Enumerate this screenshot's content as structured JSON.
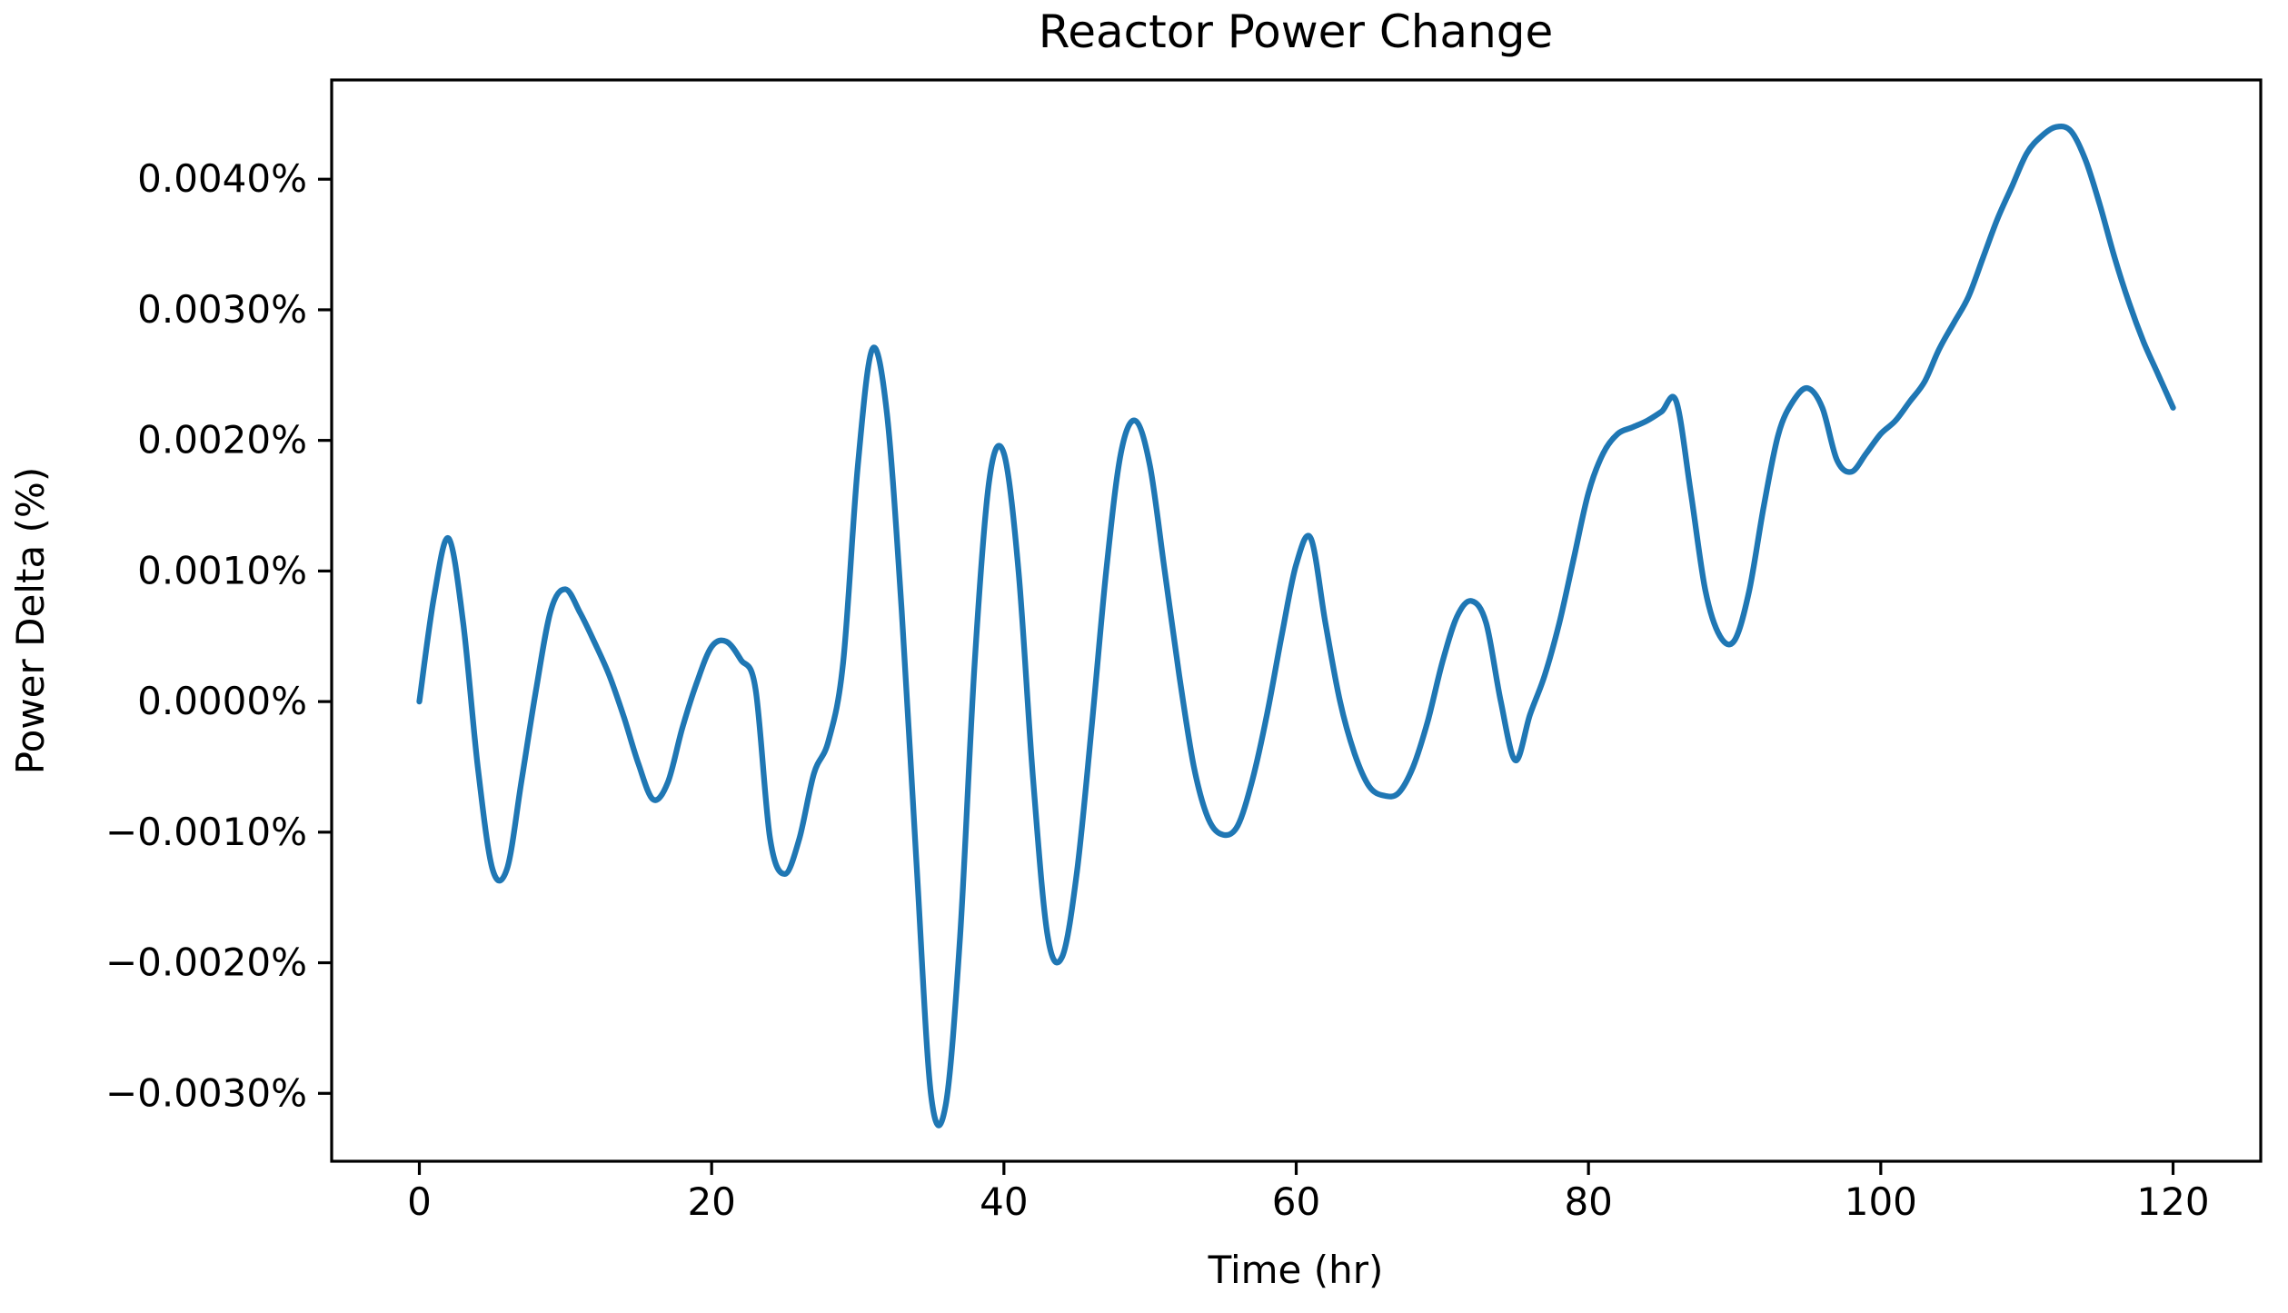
{
  "chart_data": {
    "type": "line",
    "title": "Reactor Power Change",
    "xlabel": "Time (hr)",
    "ylabel": "Power Delta (%)",
    "grid": false,
    "legend_position": "none",
    "line_color": "#1f77b4",
    "axis_color": "#000000",
    "background_color": "#ffffff",
    "xlim": [
      -6,
      126
    ],
    "ylim_percent": [
      -0.00352,
      0.00476
    ],
    "x_ticks": [
      0,
      20,
      40,
      60,
      80,
      100,
      120
    ],
    "x_tick_labels": [
      "0",
      "20",
      "40",
      "60",
      "80",
      "100",
      "120"
    ],
    "y_ticks_percent": [
      0.004,
      0.003,
      0.002,
      0.001,
      0.0,
      -0.001,
      -0.002,
      -0.003
    ],
    "y_tick_labels": [
      "0.0040%",
      "0.0030%",
      "0.0020%",
      "0.0010%",
      "0.0000%",
      "−0.0010%",
      "−0.0020%",
      "−0.0030%"
    ],
    "series": [
      {
        "name": "Power Delta",
        "x_hours": [
          0,
          1,
          2,
          3,
          4,
          5,
          6,
          7,
          8,
          9,
          10,
          11,
          12,
          13,
          14,
          15,
          16,
          17,
          18,
          19,
          20,
          21,
          22,
          23,
          24,
          25,
          26,
          27,
          28,
          29,
          30,
          31,
          32,
          33,
          34,
          35,
          36,
          37,
          38,
          39,
          40,
          41,
          42,
          43,
          44,
          45,
          46,
          47,
          48,
          49,
          50,
          51,
          52,
          53,
          54,
          55,
          56,
          57,
          58,
          59,
          60,
          61,
          62,
          63,
          64,
          65,
          66,
          67,
          68,
          69,
          70,
          71,
          72,
          73,
          74,
          75,
          76,
          77,
          78,
          79,
          80,
          81,
          82,
          83,
          84,
          85,
          86,
          87,
          88,
          89,
          90,
          91,
          92,
          93,
          94,
          95,
          96,
          97,
          98,
          99,
          100,
          101,
          102,
          103,
          104,
          105,
          106,
          107,
          108,
          109,
          110,
          111,
          112,
          113,
          114,
          115,
          116,
          117,
          118,
          119,
          120
        ],
        "y_percent": [
          0.0,
          0.0008,
          0.00125,
          0.0006,
          -0.0005,
          -0.00128,
          -0.00128,
          -0.0006,
          0.0001,
          0.0007,
          0.00086,
          0.00068,
          0.00045,
          0.0002,
          -0.00012,
          -0.00048,
          -0.00075,
          -0.00062,
          -0.0002,
          0.00015,
          0.00042,
          0.00046,
          0.00032,
          0.0001,
          -0.00105,
          -0.00132,
          -0.00105,
          -0.00055,
          -0.0003,
          0.0003,
          0.0018,
          0.0027,
          0.0022,
          0.0007,
          -0.0012,
          -0.003,
          -0.0031,
          -0.0018,
          0.0003,
          0.0017,
          0.0019,
          0.001,
          -0.0006,
          -0.0018,
          -0.00195,
          -0.0013,
          -0.0002,
          0.001,
          0.0019,
          0.00215,
          0.0018,
          0.001,
          0.0002,
          -0.0005,
          -0.0009,
          -0.00102,
          -0.00095,
          -0.0006,
          -0.0001,
          0.0005,
          0.00105,
          0.00125,
          0.0006,
          0.0,
          -0.0004,
          -0.00065,
          -0.00072,
          -0.0007,
          -0.0005,
          -0.00015,
          0.0003,
          0.00065,
          0.00077,
          0.0006,
          0.0,
          -0.00045,
          -0.0001,
          0.0002,
          0.0006,
          0.0011,
          0.0016,
          0.0019,
          0.00205,
          0.0021,
          0.00215,
          0.00222,
          0.0023,
          0.0016,
          0.00085,
          0.0005,
          0.00047,
          0.00085,
          0.0015,
          0.00205,
          0.0023,
          0.0024,
          0.00225,
          0.00185,
          0.00176,
          0.0019,
          0.00205,
          0.00215,
          0.0023,
          0.00245,
          0.0027,
          0.0029,
          0.0031,
          0.0034,
          0.0037,
          0.00395,
          0.0042,
          0.00433,
          0.0044,
          0.00437,
          0.00415,
          0.0038,
          0.0034,
          0.00305,
          0.00275,
          0.0025,
          0.00225
        ]
      }
    ]
  }
}
